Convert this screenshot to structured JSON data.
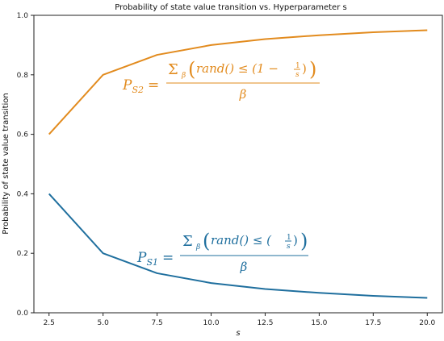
{
  "chart_data": {
    "type": "line",
    "title": "Probability of state value transition vs. Hyperparameter s",
    "xlabel": "s",
    "ylabel": "Probability of state value transition",
    "x": [
      2.5,
      5.0,
      7.5,
      10.0,
      12.5,
      15.0,
      17.5,
      20.0
    ],
    "xlim": [
      1.8,
      20.7
    ],
    "ylim": [
      0.0,
      1.0
    ],
    "xticks": [
      "2.5",
      "5.0",
      "7.5",
      "10.0",
      "12.5",
      "15.0",
      "17.5",
      "20.0"
    ],
    "yticks": [
      "0.0",
      "0.2",
      "0.4",
      "0.6",
      "0.8",
      "1.0"
    ],
    "xtick_values": [
      2.5,
      5.0,
      7.5,
      10.0,
      12.5,
      15.0,
      17.5,
      20.0
    ],
    "ytick_values": [
      0.0,
      0.2,
      0.4,
      0.6,
      0.8,
      1.0
    ],
    "grid": false,
    "series": [
      {
        "color": "#e28b1e",
        "values": [
          0.6,
          0.8,
          0.867,
          0.9,
          0.92,
          0.933,
          0.943,
          0.95
        ]
      },
      {
        "color": "#1f6f9e",
        "values": [
          0.4,
          0.2,
          0.133,
          0.1,
          0.08,
          0.067,
          0.057,
          0.05
        ]
      }
    ],
    "annotations": {
      "s2": {
        "lhs_main": "P",
        "lhs_sub": "S2",
        "eq": "=",
        "sum": "Σ",
        "sum_sub": "β",
        "numerator": "rand() ≤ (1 − ",
        "frac_num": "1",
        "frac_den": "s",
        "close": ")",
        "denominator": "β",
        "color": "#e28b1e"
      },
      "s1": {
        "lhs_main": "P",
        "lhs_sub": "S1",
        "eq": "=",
        "sum": "Σ",
        "sum_sub": "β",
        "numerator": "rand() ≤ (",
        "frac_num": "1",
        "frac_den": "s",
        "close": ")",
        "denominator": "β",
        "color": "#1f6f9e"
      }
    }
  }
}
